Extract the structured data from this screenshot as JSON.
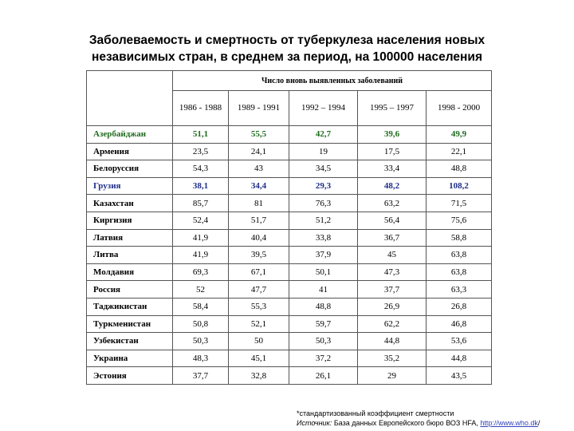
{
  "title": {
    "line1": "Заболеваемость и смертность от туберкулеза населения новых",
    "line2": "независимых стран, в среднем за период, на 100000 населения"
  },
  "table": {
    "group_header": "Число вновь выявленных заболеваний",
    "periods": [
      "1986 - 1988",
      "1989 - 1991",
      "1992 – 1994",
      "1995 – 1997",
      "1998 - 2000"
    ],
    "rows": [
      {
        "country": "Азербайджан",
        "values": [
          "51,1",
          "55,5",
          "42,7",
          "39,6",
          "49,9"
        ],
        "color": "#1e6b1e"
      },
      {
        "country": "Армения",
        "values": [
          "23,5",
          "24,1",
          "19",
          "17,5",
          "22,1"
        ]
      },
      {
        "country": "Белоруссия",
        "values": [
          "54,3",
          "43",
          "34,5",
          "33,4",
          "48,8"
        ]
      },
      {
        "country": "Грузия",
        "values": [
          "38,1",
          "34,4",
          "29,3",
          "48,2",
          "108,2"
        ],
        "color": "#1f2f8a"
      },
      {
        "country": "Казахстан",
        "values": [
          "85,7",
          "81",
          "76,3",
          "63,2",
          "71,5"
        ]
      },
      {
        "country": "Киргизия",
        "values": [
          "52,4",
          "51,7",
          "51,2",
          "56,4",
          "75,6"
        ]
      },
      {
        "country": "Латвия",
        "values": [
          "41,9",
          "40,4",
          "33,8",
          "36,7",
          "58,8"
        ]
      },
      {
        "country": "Литва",
        "values": [
          "41,9",
          "39,5",
          "37,9",
          "45",
          "63,8"
        ]
      },
      {
        "country": "Молдавия",
        "values": [
          "69,3",
          "67,1",
          "50,1",
          "47,3",
          "63,8"
        ]
      },
      {
        "country": "Россия",
        "values": [
          "52",
          "47,7",
          "41",
          "37,7",
          "63,3"
        ]
      },
      {
        "country": "Таджикистан",
        "values": [
          "58,4",
          "55,3",
          "48,8",
          "26,9",
          "26,8"
        ]
      },
      {
        "country": "Туркменистан",
        "values": [
          "50,8",
          "52,1",
          "59,7",
          "62,2",
          "46,8"
        ]
      },
      {
        "country": "Узбекистан",
        "values": [
          "50,3",
          "50",
          "50,3",
          "44,8",
          "53,6"
        ]
      },
      {
        "country": "Украина",
        "values": [
          "48,3",
          "45,1",
          "37,2",
          "35,2",
          "44,8"
        ]
      },
      {
        "country": "Эстония",
        "values": [
          "37,7",
          "32,8",
          "26,1",
          "29",
          "43,5"
        ]
      }
    ]
  },
  "footer": {
    "note": "*стандартизованный коэффициент смертности",
    "source_label": "Источник:",
    "source_text": "База данных Европейского бюро ВОЗ HFA,",
    "source_link": "http://www.who.dk",
    "trailing": "/"
  }
}
